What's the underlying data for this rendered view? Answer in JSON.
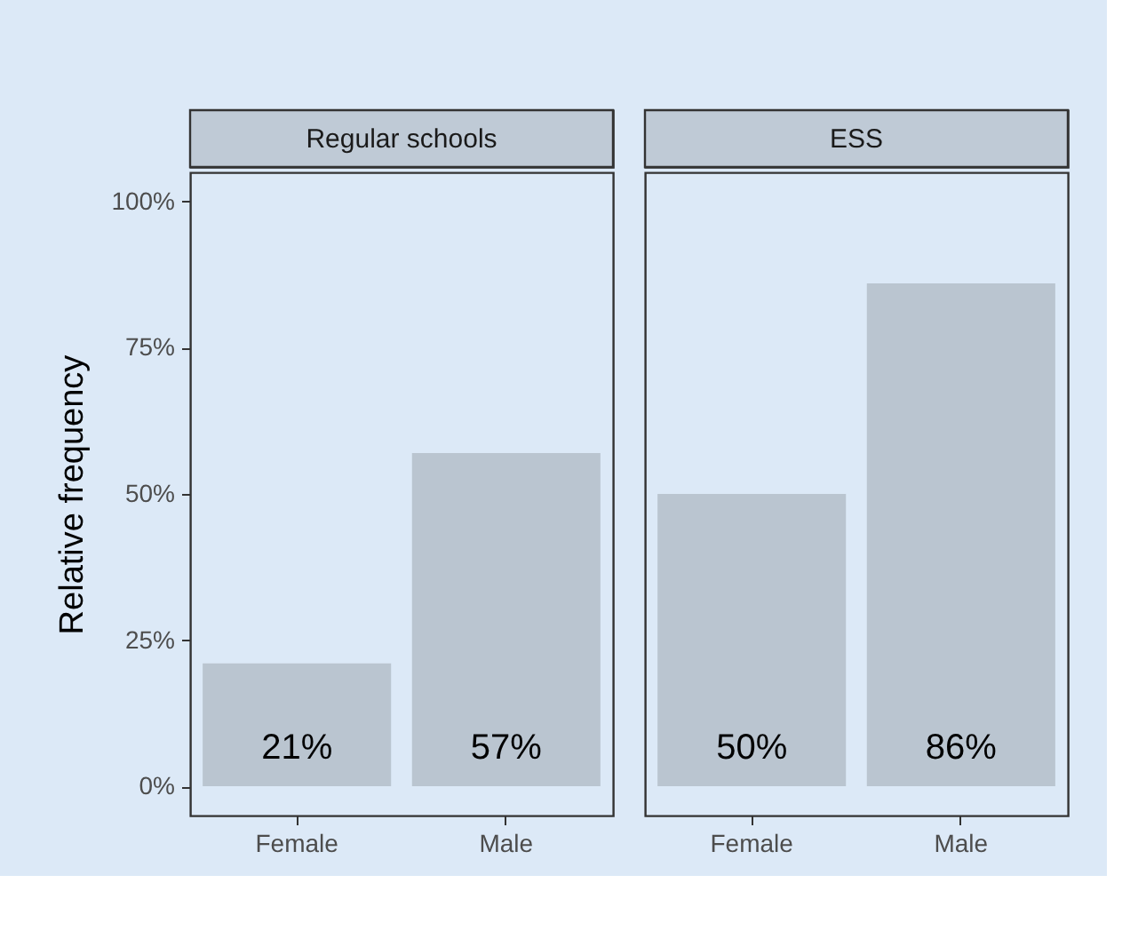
{
  "chart_data": [
    {
      "type": "bar",
      "title": "Regular schools",
      "ylabel": "Relative frequency",
      "categories": [
        "Female",
        "Male"
      ],
      "values": [
        21,
        57
      ],
      "value_labels": [
        "21%",
        "57%"
      ],
      "color": "#bac5d0",
      "ylim": [
        -5,
        105
      ],
      "yticks": [
        {
          "value": 0,
          "label": "0%"
        },
        {
          "value": 25,
          "label": "25%"
        },
        {
          "value": 50,
          "label": "50%"
        },
        {
          "value": 75,
          "label": "75%"
        },
        {
          "value": 100,
          "label": "100%"
        }
      ]
    },
    {
      "type": "bar",
      "title": "ESS",
      "categories": [
        "Female",
        "Male"
      ],
      "values": [
        50,
        86
      ],
      "value_labels": [
        "50%",
        "86%"
      ],
      "color": "#bac5d0",
      "ylim": [
        -5,
        105
      ],
      "tick_labels": "x"
    }
  ]
}
